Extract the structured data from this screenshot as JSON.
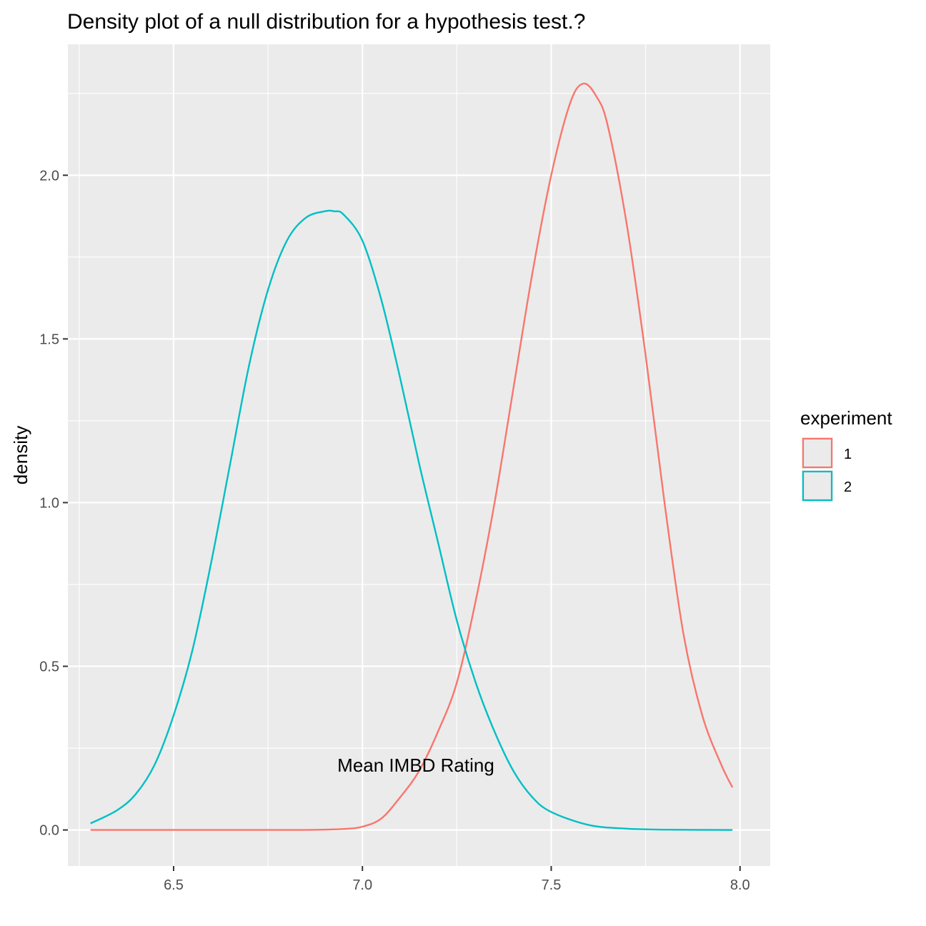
{
  "chart_data": {
    "type": "line",
    "title": "Density plot of  a null distribution for a hypothesis test.?",
    "xlabel": "Mean IMBD Rating",
    "ylabel": "density",
    "xlim": [
      6.22,
      8.08
    ],
    "ylim": [
      -0.11,
      2.4
    ],
    "x_ticks": [
      6.5,
      7.0,
      7.5,
      8.0
    ],
    "x_tick_labels": [
      "6.5",
      "7.0",
      "7.5",
      "8.0"
    ],
    "y_ticks": [
      0.0,
      0.5,
      1.0,
      1.5,
      2.0
    ],
    "y_tick_labels": [
      "0.0",
      "0.5",
      "1.0",
      "1.5",
      "2.0"
    ],
    "grid": true,
    "legend": {
      "title": "experiment",
      "position": "right"
    },
    "series": [
      {
        "name": "1",
        "color": "#F8766D",
        "x": [
          6.28,
          6.5,
          6.7,
          6.85,
          6.95,
          7.0,
          7.05,
          7.1,
          7.15,
          7.2,
          7.25,
          7.3,
          7.35,
          7.4,
          7.45,
          7.5,
          7.55,
          7.585,
          7.62,
          7.65,
          7.7,
          7.75,
          7.8,
          7.85,
          7.9,
          7.95,
          7.98
        ],
        "values": [
          0.0,
          0.0,
          0.0,
          0.0,
          0.003,
          0.01,
          0.035,
          0.1,
          0.18,
          0.3,
          0.45,
          0.7,
          1.0,
          1.35,
          1.7,
          2.0,
          2.22,
          2.28,
          2.24,
          2.15,
          1.85,
          1.45,
          1.0,
          0.6,
          0.35,
          0.2,
          0.13
        ]
      },
      {
        "name": "2",
        "color": "#00BFC4",
        "x": [
          6.28,
          6.35,
          6.4,
          6.45,
          6.5,
          6.55,
          6.6,
          6.65,
          6.7,
          6.75,
          6.8,
          6.85,
          6.9,
          6.925,
          6.95,
          7.0,
          7.05,
          7.1,
          7.15,
          7.2,
          7.25,
          7.3,
          7.35,
          7.4,
          7.45,
          7.5,
          7.6,
          7.7,
          7.8,
          7.98
        ],
        "values": [
          0.02,
          0.06,
          0.11,
          0.2,
          0.35,
          0.55,
          0.82,
          1.12,
          1.42,
          1.65,
          1.8,
          1.87,
          1.89,
          1.89,
          1.88,
          1.8,
          1.62,
          1.38,
          1.12,
          0.88,
          0.64,
          0.45,
          0.3,
          0.18,
          0.1,
          0.055,
          0.015,
          0.004,
          0.001,
          0.0
        ]
      }
    ]
  }
}
